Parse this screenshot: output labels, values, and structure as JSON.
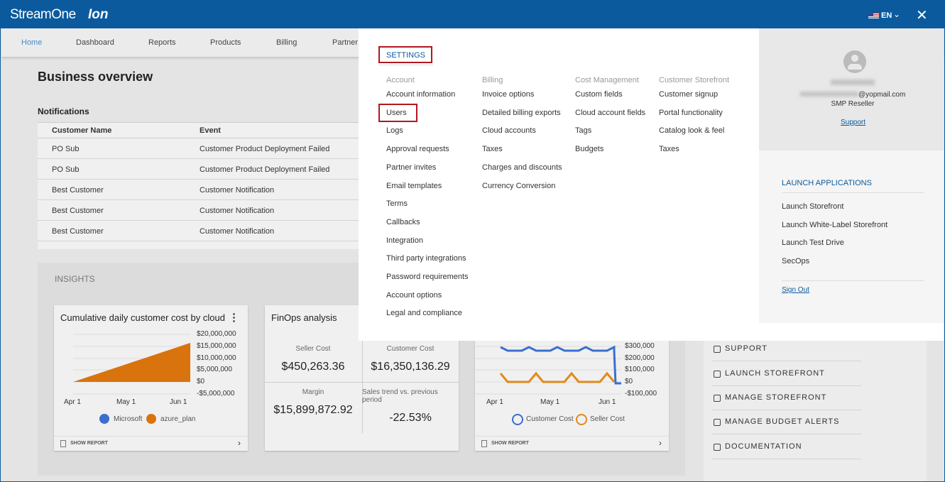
{
  "header": {
    "brand": "StreamOne",
    "brand_suffix": "Ion",
    "language": "EN"
  },
  "nav": [
    "Home",
    "Dashboard",
    "Reports",
    "Products",
    "Billing",
    "Partner"
  ],
  "page_title": "Business overview",
  "notifications": {
    "title": "Notifications",
    "columns": [
      "Customer Name",
      "Event"
    ],
    "rows": [
      [
        "PO Sub",
        "Customer Product Deployment Failed"
      ],
      [
        "PO Sub",
        "Customer Product Deployment Failed"
      ],
      [
        "Best Customer",
        "Customer Notification"
      ],
      [
        "Best Customer",
        "Customer Notification"
      ],
      [
        "Best Customer",
        "Customer Notification"
      ]
    ]
  },
  "insights": {
    "title": "INSIGHTS",
    "cost_card": {
      "title": "Cumulative daily customer cost by cloud",
      "y_labels": [
        "$20,000,000",
        "$15,000,000",
        "$10,000,000",
        "$5,000,000",
        "$0",
        "-$5,000,000"
      ],
      "x_labels": [
        "Apr 1",
        "May 1",
        "Jun 1"
      ],
      "legend": [
        "Microsoft",
        "azure_plan"
      ],
      "footer": "SHOW REPORT"
    },
    "finops_card": {
      "title": "FinOps analysis",
      "metrics": [
        {
          "label": "Seller Cost",
          "value": "$450,263.36"
        },
        {
          "label": "Customer Cost",
          "value": "$16,350,136.29"
        },
        {
          "label": "Margin",
          "value": "$15,899,872.92"
        },
        {
          "label": "Sales trend vs. previous period",
          "value": "-22.53%"
        }
      ]
    },
    "sales_card": {
      "y_labels": [
        "$300,000",
        "$200,000",
        "$100,000",
        "$0",
        "-$100,000"
      ],
      "x_labels": [
        "Apr 1",
        "May 1",
        "Jun 1"
      ],
      "legend": [
        "Customer Cost",
        "Seller Cost"
      ],
      "footer": "SHOW REPORT"
    }
  },
  "quick_links": [
    "SUPPORT",
    "LAUNCH STOREFRONT",
    "MANAGE STOREFRONT",
    "MANAGE BUDGET ALERTS",
    "DOCUMENTATION"
  ],
  "settings": {
    "title": "SETTINGS",
    "columns": [
      {
        "heading": "Account",
        "items": [
          "Account information",
          "Users",
          "Logs",
          "Approval requests",
          "Partner invites",
          "Email templates",
          "Terms",
          "Callbacks",
          "Integration",
          "Third party integrations",
          "Password requirements",
          "Account options",
          "Legal and compliance"
        ]
      },
      {
        "heading": "Billing",
        "items": [
          "Invoice options",
          "Detailed billing exports",
          "Cloud accounts",
          "Taxes",
          "Charges and discounts",
          "Currency Conversion"
        ]
      },
      {
        "heading": "Cost Management",
        "items": [
          "Custom fields",
          "Cloud account fields",
          "Tags",
          "Budgets"
        ]
      },
      {
        "heading": "Customer Storefront",
        "items": [
          "Customer signup",
          "Portal functionality",
          "Catalog look & feel",
          "Taxes"
        ]
      }
    ]
  },
  "profile": {
    "email": "@yopmail.com",
    "role": "SMP Reseller",
    "support": "Support"
  },
  "launch": {
    "title": "LAUNCH APPLICATIONS",
    "items": [
      "Launch Storefront",
      "Launch White-Label Storefront",
      "Launch Test Drive",
      "SecOps"
    ],
    "sign_out": "Sign Out"
  }
}
